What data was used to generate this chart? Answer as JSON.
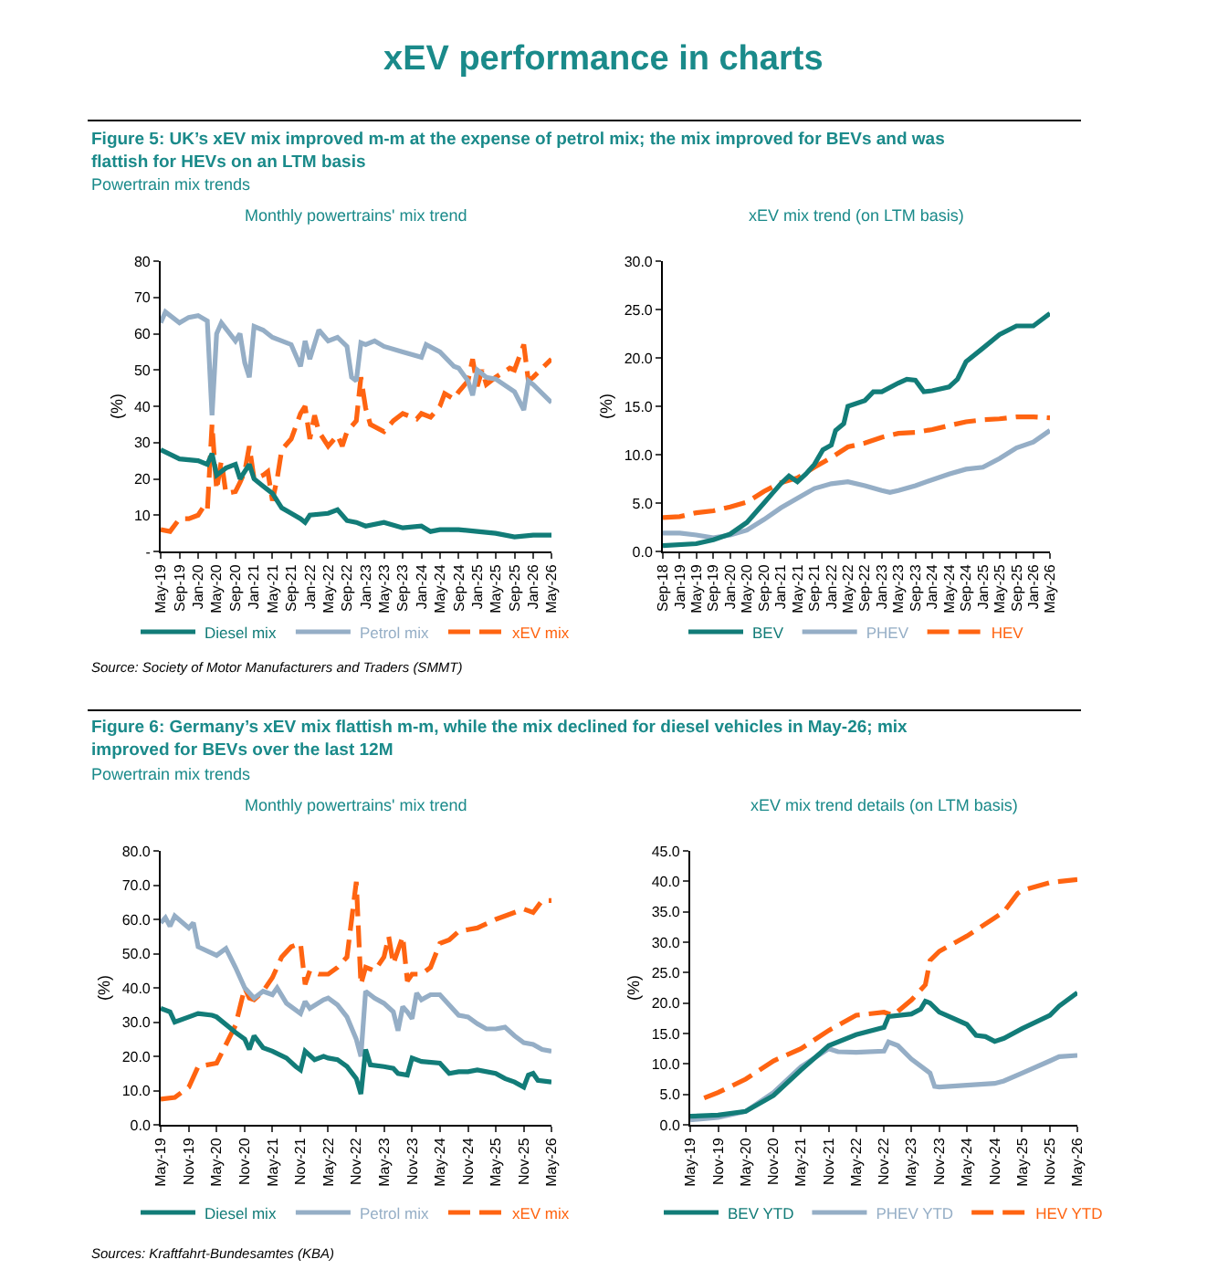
{
  "chart_data": [
    {
      "type": "line",
      "title": "Monthly powertrains' mix trend",
      "ylabel": "(%)",
      "legend": "bottom",
      "marker": "none",
      "annotations": [
        "xEV performance in charts",
        "Figure 5: UK’s xEV mix improved m-m at the expense of petrol mix; the mix improved for BEVs and was flattish for HEVs on an LTM basis",
        "Powertrain mix trends"
      ],
      "xlim": [
        "2019-05",
        "2026-05"
      ],
      "ylim": [
        0,
        80
      ],
      "xticks": [
        {
          "value": "2019-05",
          "label": "May-19"
        },
        {
          "value": "2019-09",
          "label": "Sep-19"
        },
        {
          "value": "2020-01",
          "label": "Jan-20"
        },
        {
          "value": "2020-05",
          "label": "May-20"
        },
        {
          "value": "2020-09",
          "label": "Sep-20"
        },
        {
          "value": "2021-01",
          "label": "Jan-21"
        },
        {
          "value": "2021-05",
          "label": "May-21"
        },
        {
          "value": "2021-09",
          "label": "Sep-21"
        },
        {
          "value": "2022-01",
          "label": "Jan-22"
        },
        {
          "value": "2022-05",
          "label": "May-22"
        },
        {
          "value": "2022-09",
          "label": "Sep-22"
        },
        {
          "value": "2023-01",
          "label": "Jan-23"
        },
        {
          "value": "2023-05",
          "label": "May-23"
        },
        {
          "value": "2023-09",
          "label": "Sep-23"
        },
        {
          "value": "2024-01",
          "label": "Jan-24"
        },
        {
          "value": "2024-05",
          "label": "May-24"
        },
        {
          "value": "2024-09",
          "label": "Sep-24"
        },
        {
          "value": "2025-01",
          "label": "Jan-25"
        },
        {
          "value": "2025-05",
          "label": "May-25"
        },
        {
          "value": "2025-09",
          "label": "Sep-25"
        },
        {
          "value": "2026-01",
          "label": "Jan-26"
        },
        {
          "value": "2026-05",
          "label": "May-26"
        }
      ],
      "yticks": [
        {
          "value": 0,
          "label": "-"
        },
        10,
        20,
        30,
        40,
        50,
        60,
        70,
        80
      ],
      "series": [
        {
          "name": "Diesel mix",
          "color": "#127c78",
          "line_style": "solid",
          "x": [
            "2019-05",
            "2019-09",
            "2020-01",
            "2020-03",
            "2020-04",
            "2020-05",
            "2020-07",
            "2020-09",
            "2020-10",
            "2020-12",
            "2021-01",
            "2021-03",
            "2021-05",
            "2021-07",
            "2021-09",
            "2021-11",
            "2021-12",
            "2022-01",
            "2022-05",
            "2022-07",
            "2022-09",
            "2022-11",
            "2023-01",
            "2023-05",
            "2023-09",
            "2024-01",
            "2024-03",
            "2024-05",
            "2024-09",
            "2025-01",
            "2025-05",
            "2025-09",
            "2026-01",
            "2026-05"
          ],
          "values": [
            28,
            25.5,
            25,
            24,
            27,
            21,
            23,
            24,
            20,
            24,
            20,
            18,
            16,
            12,
            10.5,
            9,
            8,
            10,
            10.5,
            11.5,
            8.5,
            8,
            7,
            8,
            6.5,
            7,
            5.5,
            6,
            6,
            5.5,
            5,
            4,
            4.5,
            4.5
          ]
        },
        {
          "name": "Petrol mix",
          "color": "#95aec6",
          "line_style": "solid",
          "x": [
            "2019-05",
            "2019-06",
            "2019-09",
            "2019-11",
            "2020-01",
            "2020-03",
            "2020-04",
            "2020-05",
            "2020-06",
            "2020-09",
            "2020-10",
            "2020-11",
            "2020-12",
            "2021-01",
            "2021-03",
            "2021-05",
            "2021-09",
            "2021-11",
            "2021-12",
            "2022-01",
            "2022-03",
            "2022-05",
            "2022-07",
            "2022-09",
            "2022-10",
            "2022-11",
            "2022-12",
            "2023-01",
            "2023-03",
            "2023-05",
            "2023-09",
            "2024-01",
            "2024-02",
            "2024-05",
            "2024-08",
            "2024-09",
            "2024-11",
            "2024-12",
            "2025-01",
            "2025-03",
            "2025-05",
            "2025-09",
            "2025-11",
            "2025-12",
            "2026-01",
            "2026-05"
          ],
          "values": [
            63,
            66,
            63,
            64.5,
            65,
            63.5,
            37.5,
            60,
            63,
            58,
            60,
            52,
            48,
            62,
            61,
            59,
            57,
            51,
            58,
            53,
            61,
            58,
            59,
            56.5,
            48,
            47,
            57.5,
            57,
            58,
            56.5,
            55,
            53.5,
            57,
            55,
            51,
            50.5,
            47,
            43,
            50,
            48,
            47.5,
            44,
            39,
            47,
            46,
            41
          ]
        },
        {
          "name": "xEV mix",
          "color": "#ff6411",
          "line_style": "dashed",
          "x": [
            "2019-05",
            "2019-07",
            "2019-09",
            "2019-11",
            "2020-01",
            "2020-02",
            "2020-03",
            "2020-04",
            "2020-05",
            "2020-06",
            "2020-07",
            "2020-09",
            "2020-10",
            "2020-11",
            "2020-12",
            "2021-01",
            "2021-03",
            "2021-04",
            "2021-05",
            "2021-06",
            "2021-07",
            "2021-09",
            "2021-11",
            "2021-12",
            "2022-01",
            "2022-02",
            "2022-03",
            "2022-05",
            "2022-07",
            "2022-08",
            "2022-09",
            "2022-11",
            "2022-12",
            "2023-01",
            "2023-02",
            "2023-05",
            "2023-07",
            "2023-09",
            "2023-12",
            "2024-01",
            "2024-03",
            "2024-05",
            "2024-06",
            "2024-08",
            "2024-09",
            "2024-11",
            "2024-12",
            "2025-01",
            "2025-02",
            "2025-03",
            "2025-05",
            "2025-08",
            "2025-09",
            "2025-11",
            "2025-12",
            "2026-01",
            "2026-05"
          ],
          "values": [
            6,
            5.5,
            9,
            9,
            10,
            12,
            11,
            35,
            17,
            25,
            16,
            16.5,
            19,
            22,
            29,
            20,
            21,
            22,
            14,
            20,
            28,
            31,
            38,
            40,
            31,
            37.5,
            33,
            29,
            32,
            29,
            33,
            36,
            48,
            39.5,
            35,
            33,
            36,
            38,
            36.5,
            38,
            37,
            40,
            43.5,
            42,
            44,
            47,
            53,
            45.5,
            50,
            46,
            48,
            50.5,
            50,
            57,
            47,
            48,
            53
          ]
        }
      ]
    },
    {
      "type": "line",
      "title": "xEV mix trend (on LTM basis)",
      "ylabel": "(%)",
      "legend": "bottom",
      "marker": "none",
      "annotations": [
        "Source: Society of Motor Manufacturers and Traders (SMMT)"
      ],
      "xlim": [
        "2018-09",
        "2026-05"
      ],
      "ylim": [
        0,
        30
      ],
      "xticks": [
        {
          "value": "2018-09",
          "label": "Sep-18"
        },
        {
          "value": "2019-01",
          "label": "Jan-19"
        },
        {
          "value": "2019-05",
          "label": "May-19"
        },
        {
          "value": "2019-09",
          "label": "Sep-19"
        },
        {
          "value": "2020-01",
          "label": "Jan-20"
        },
        {
          "value": "2020-05",
          "label": "May-20"
        },
        {
          "value": "2020-09",
          "label": "Sep-20"
        },
        {
          "value": "2021-01",
          "label": "Jan-21"
        },
        {
          "value": "2021-05",
          "label": "May-21"
        },
        {
          "value": "2021-09",
          "label": "Sep-21"
        },
        {
          "value": "2022-01",
          "label": "Jan-22"
        },
        {
          "value": "2022-05",
          "label": "May-22"
        },
        {
          "value": "2022-09",
          "label": "Sep-22"
        },
        {
          "value": "2023-01",
          "label": "Jan-23"
        },
        {
          "value": "2023-05",
          "label": "May-23"
        },
        {
          "value": "2023-09",
          "label": "Sep-23"
        },
        {
          "value": "2024-01",
          "label": "Jan-24"
        },
        {
          "value": "2024-05",
          "label": "May-24"
        },
        {
          "value": "2024-09",
          "label": "Sep-24"
        },
        {
          "value": "2025-01",
          "label": "Jan-25"
        },
        {
          "value": "2025-05",
          "label": "May-25"
        },
        {
          "value": "2025-09",
          "label": "Sep-25"
        },
        {
          "value": "2026-01",
          "label": "Jan-26"
        },
        {
          "value": "2026-05",
          "label": "May-26"
        }
      ],
      "yticks": [
        {
          "value": 0,
          "label": "0.0"
        },
        {
          "value": 5,
          "label": "5.0"
        },
        {
          "value": 10,
          "label": "10.0"
        },
        {
          "value": 15,
          "label": "15.0"
        },
        {
          "value": 20,
          "label": "20.0"
        },
        {
          "value": 25,
          "label": "25.0"
        },
        {
          "value": 30,
          "label": "30.0"
        }
      ],
      "series": [
        {
          "name": "BEV",
          "color": "#127c78",
          "line_style": "solid",
          "x": [
            "2018-09",
            "2019-05",
            "2019-09",
            "2020-01",
            "2020-05",
            "2020-09",
            "2020-11",
            "2021-01",
            "2021-03",
            "2021-05",
            "2021-07",
            "2021-09",
            "2021-11",
            "2022-01",
            "2022-02",
            "2022-04",
            "2022-05",
            "2022-09",
            "2022-11",
            "2023-01",
            "2023-05",
            "2023-07",
            "2023-09",
            "2023-11",
            "2024-01",
            "2024-05",
            "2024-07",
            "2024-09",
            "2025-01",
            "2025-05",
            "2025-09",
            "2026-01",
            "2026-05"
          ],
          "values": [
            0.6,
            0.8,
            1.2,
            1.8,
            3,
            5,
            6,
            7,
            7.8,
            7.2,
            8,
            9,
            10.5,
            11,
            12.5,
            13.2,
            15,
            15.6,
            16.5,
            16.5,
            17.4,
            17.8,
            17.7,
            16.5,
            16.6,
            17,
            17.8,
            19.6,
            21,
            22.4,
            23.3,
            23.3,
            24.6
          ]
        },
        {
          "name": "PHEV",
          "color": "#95aec6",
          "line_style": "solid",
          "x": [
            "2018-09",
            "2019-01",
            "2019-05",
            "2019-09",
            "2020-01",
            "2020-05",
            "2020-09",
            "2021-01",
            "2021-05",
            "2021-09",
            "2022-01",
            "2022-05",
            "2022-09",
            "2023-01",
            "2023-03",
            "2023-05",
            "2023-09",
            "2024-01",
            "2024-05",
            "2024-09",
            "2025-01",
            "2025-05",
            "2025-09",
            "2026-01",
            "2026-05"
          ],
          "values": [
            1.9,
            1.9,
            1.7,
            1.4,
            1.7,
            2.2,
            3.3,
            4.5,
            5.5,
            6.5,
            7.0,
            7.2,
            6.8,
            6.3,
            6.1,
            6.3,
            6.8,
            7.4,
            8.0,
            8.5,
            8.7,
            9.6,
            10.7,
            11.3,
            12.5
          ]
        },
        {
          "name": "HEV",
          "color": "#ff6411",
          "line_style": "dashed",
          "x": [
            "2018-09",
            "2019-01",
            "2019-05",
            "2019-09",
            "2020-01",
            "2020-05",
            "2020-09",
            "2021-01",
            "2021-05",
            "2021-09",
            "2022-01",
            "2022-05",
            "2022-09",
            "2023-01",
            "2023-05",
            "2023-09",
            "2024-01",
            "2024-05",
            "2024-09",
            "2025-01",
            "2025-05",
            "2025-09",
            "2026-01",
            "2026-05"
          ],
          "values": [
            3.5,
            3.6,
            4.0,
            4.2,
            4.6,
            5.1,
            6.2,
            7.1,
            7.6,
            8.7,
            9.7,
            10.8,
            11.2,
            11.8,
            12.2,
            12.3,
            12.6,
            13.0,
            13.4,
            13.6,
            13.7,
            13.9,
            13.9,
            13.8
          ]
        }
      ]
    },
    {
      "type": "line",
      "title": "Monthly powertrains' mix trend",
      "ylabel": "(%)",
      "legend": "bottom",
      "marker": "none",
      "annotations": [
        "Figure 6: Germany’s xEV mix flattish m-m, while the mix declined for diesel vehicles in May-26; mix improved for BEVs over the last 12M",
        "Powertrain mix trends"
      ],
      "xlim": [
        "2019-05",
        "2026-05"
      ],
      "ylim": [
        0,
        80
      ],
      "xticks": [
        {
          "value": "2019-05",
          "label": "May-19"
        },
        {
          "value": "2019-11",
          "label": "Nov-19"
        },
        {
          "value": "2020-05",
          "label": "May-20"
        },
        {
          "value": "2020-11",
          "label": "Nov-20"
        },
        {
          "value": "2021-05",
          "label": "May-21"
        },
        {
          "value": "2021-11",
          "label": "Nov-21"
        },
        {
          "value": "2022-05",
          "label": "May-22"
        },
        {
          "value": "2022-11",
          "label": "Nov-22"
        },
        {
          "value": "2023-05",
          "label": "May-23"
        },
        {
          "value": "2023-11",
          "label": "Nov-23"
        },
        {
          "value": "2024-05",
          "label": "May-24"
        },
        {
          "value": "2024-11",
          "label": "Nov-24"
        },
        {
          "value": "2025-05",
          "label": "May-25"
        },
        {
          "value": "2025-11",
          "label": "Nov-25"
        },
        {
          "value": "2026-05",
          "label": "May-26"
        }
      ],
      "yticks": [
        {
          "value": 0,
          "label": "0.0"
        },
        {
          "value": 10,
          "label": "10.0"
        },
        {
          "value": 20,
          "label": "20.0"
        },
        {
          "value": 30,
          "label": "30.0"
        },
        {
          "value": 40,
          "label": "40.0"
        },
        {
          "value": 50,
          "label": "50.0"
        },
        {
          "value": 60,
          "label": "60.0"
        },
        {
          "value": 70,
          "label": "70.0"
        },
        {
          "value": 80,
          "label": "80.0"
        }
      ],
      "series": [
        {
          "name": "Diesel mix",
          "color": "#127c78",
          "line_style": "solid",
          "x": [
            "2019-05",
            "2019-07",
            "2019-08",
            "2019-11",
            "2020-01",
            "2020-04",
            "2020-05",
            "2020-09",
            "2020-11",
            "2020-12",
            "2021-01",
            "2021-03",
            "2021-05",
            "2021-08",
            "2021-10",
            "2021-11",
            "2021-12",
            "2022-02",
            "2022-04",
            "2022-05",
            "2022-07",
            "2022-09",
            "2022-11",
            "2022-12",
            "2023-01",
            "2023-02",
            "2023-05",
            "2023-07",
            "2023-08",
            "2023-10",
            "2023-11",
            "2024-01",
            "2024-05",
            "2024-07",
            "2024-09",
            "2024-11",
            "2025-01",
            "2025-05",
            "2025-07",
            "2025-09",
            "2025-11",
            "2025-12",
            "2026-01",
            "2026-02",
            "2026-05"
          ],
          "values": [
            34,
            33,
            30,
            31.5,
            32.5,
            32,
            31.5,
            27,
            25,
            22,
            26,
            22.5,
            21.5,
            19.5,
            17,
            16,
            21.5,
            19,
            20,
            19.5,
            19,
            17,
            13.5,
            9,
            22,
            17.5,
            17,
            16.5,
            15,
            14.5,
            19.5,
            18.5,
            18,
            15,
            15.5,
            15.5,
            16,
            15,
            13.5,
            12.5,
            11,
            14.5,
            15,
            13,
            12.5
          ]
        },
        {
          "name": "Petrol mix",
          "color": "#95aec6",
          "line_style": "solid",
          "x": [
            "2019-05",
            "2019-06",
            "2019-07",
            "2019-08",
            "2019-11",
            "2019-12",
            "2020-01",
            "2020-05",
            "2020-07",
            "2020-09",
            "2020-11",
            "2021-01",
            "2021-03",
            "2021-05",
            "2021-06",
            "2021-08",
            "2021-11",
            "2021-12",
            "2022-01",
            "2022-04",
            "2022-05",
            "2022-07",
            "2022-09",
            "2022-11",
            "2022-12",
            "2023-01",
            "2023-03",
            "2023-05",
            "2023-07",
            "2023-08",
            "2023-09",
            "2023-10",
            "2023-11",
            "2023-12",
            "2024-01",
            "2024-03",
            "2024-05",
            "2024-07",
            "2024-09",
            "2024-11",
            "2025-01",
            "2025-03",
            "2025-05",
            "2025-07",
            "2025-09",
            "2025-11",
            "2026-01",
            "2026-03",
            "2026-05"
          ],
          "values": [
            59,
            60.5,
            58,
            61,
            57.5,
            59,
            52,
            49.5,
            51.5,
            46,
            40,
            37,
            39,
            38,
            40,
            35.5,
            32.5,
            36,
            34,
            36.5,
            37,
            35,
            31.5,
            25,
            20,
            39,
            37,
            35.5,
            33,
            27.5,
            34.5,
            33,
            31,
            38.5,
            36.5,
            38,
            38,
            35,
            32,
            31.5,
            29.5,
            28,
            28,
            28.5,
            26,
            24,
            23.5,
            22,
            21.5
          ]
        },
        {
          "name": "xEV mix",
          "color": "#ff6411",
          "line_style": "dashed",
          "x": [
            "2019-05",
            "2019-08",
            "2019-11",
            "2020-01",
            "2020-05",
            "2020-09",
            "2020-11",
            "2020-12",
            "2021-01",
            "2021-03",
            "2021-05",
            "2021-07",
            "2021-09",
            "2021-11",
            "2021-12",
            "2022-01",
            "2022-03",
            "2022-05",
            "2022-07",
            "2022-09",
            "2022-11",
            "2022-12",
            "2023-01",
            "2023-03",
            "2023-05",
            "2023-06",
            "2023-07",
            "2023-09",
            "2023-10",
            "2023-11",
            "2024-01",
            "2024-03",
            "2024-05",
            "2024-07",
            "2024-09",
            "2024-11",
            "2025-01",
            "2025-05",
            "2025-11",
            "2026-01",
            "2026-03",
            "2026-05"
          ],
          "values": [
            7.5,
            8,
            11,
            17,
            18,
            29,
            40,
            37,
            36.5,
            39,
            43,
            49,
            52,
            53,
            41,
            45,
            44,
            44,
            46,
            49,
            71,
            41,
            46,
            45,
            49,
            55,
            47,
            55,
            42,
            44,
            44,
            46,
            53,
            54,
            56.5,
            57,
            57.5,
            60,
            63,
            62,
            65.5,
            65.5
          ]
        }
      ]
    },
    {
      "type": "line",
      "title": "xEV mix trend details (on LTM basis)",
      "ylabel": "(%)",
      "legend": "bottom",
      "marker": "none",
      "annotations": [
        "Sources: Kraftfahrt-Bundesamtes (KBA)"
      ],
      "xlim": [
        "2019-05",
        "2026-05"
      ],
      "ylim": [
        0,
        45
      ],
      "xticks": [
        {
          "value": "2019-05",
          "label": "May-19"
        },
        {
          "value": "2019-11",
          "label": "Nov-19"
        },
        {
          "value": "2020-05",
          "label": "May-20"
        },
        {
          "value": "2020-11",
          "label": "Nov-20"
        },
        {
          "value": "2021-05",
          "label": "May-21"
        },
        {
          "value": "2021-11",
          "label": "Nov-21"
        },
        {
          "value": "2022-05",
          "label": "May-22"
        },
        {
          "value": "2022-11",
          "label": "Nov-22"
        },
        {
          "value": "2023-05",
          "label": "May-23"
        },
        {
          "value": "2023-11",
          "label": "Nov-23"
        },
        {
          "value": "2024-05",
          "label": "May-24"
        },
        {
          "value": "2024-11",
          "label": "Nov-24"
        },
        {
          "value": "2025-05",
          "label": "May-25"
        },
        {
          "value": "2025-11",
          "label": "Nov-25"
        },
        {
          "value": "2026-05",
          "label": "May-26"
        }
      ],
      "yticks": [
        {
          "value": 0,
          "label": "0.0"
        },
        {
          "value": 5,
          "label": "5.0"
        },
        {
          "value": 10,
          "label": "10.0"
        },
        {
          "value": 15,
          "label": "15.0"
        },
        {
          "value": 20,
          "label": "20.0"
        },
        {
          "value": 25,
          "label": "25.0"
        },
        {
          "value": 30,
          "label": "30.0"
        },
        {
          "value": 35,
          "label": "35.0"
        },
        {
          "value": 40,
          "label": "40.0"
        },
        {
          "value": 45,
          "label": "45.0"
        }
      ],
      "series": [
        {
          "name": "BEV YTD",
          "color": "#127c78",
          "line_style": "solid",
          "x": [
            "2019-05",
            "2019-11",
            "2020-05",
            "2020-11",
            "2021-05",
            "2021-11",
            "2022-05",
            "2022-11",
            "2022-12",
            "2023-05",
            "2023-07",
            "2023-08",
            "2023-09",
            "2023-11",
            "2024-05",
            "2024-07",
            "2024-09",
            "2024-11",
            "2025-01",
            "2025-05",
            "2025-11",
            "2026-01",
            "2026-05"
          ],
          "values": [
            1.4,
            1.6,
            2.2,
            4.8,
            9,
            13,
            14.8,
            16,
            17.8,
            18.2,
            19,
            20.3,
            20,
            18.5,
            16.5,
            14.7,
            14.5,
            13.7,
            14.2,
            15.8,
            18,
            19.5,
            21.7
          ]
        },
        {
          "name": "PHEV YTD",
          "color": "#95aec6",
          "line_style": "solid",
          "x": [
            "2019-05",
            "2019-11",
            "2020-05",
            "2020-11",
            "2021-05",
            "2021-11",
            "2022-01",
            "2022-05",
            "2022-11",
            "2022-12",
            "2023-02",
            "2023-05",
            "2023-09",
            "2023-10",
            "2023-11",
            "2024-05",
            "2024-11",
            "2025-01",
            "2025-05",
            "2025-11",
            "2026-01",
            "2026-05"
          ],
          "values": [
            0.8,
            1.2,
            2.2,
            5.3,
            9.5,
            12.5,
            12,
            11.9,
            12.1,
            13.6,
            13,
            10.8,
            8.5,
            6.3,
            6.2,
            6.5,
            6.8,
            7.2,
            8.5,
            10.5,
            11.2,
            11.4
          ]
        },
        {
          "name": "HEV YTD",
          "color": "#ff6411",
          "line_style": "dashed",
          "x": [
            "2019-08",
            "2019-11",
            "2020-05",
            "2020-11",
            "2021-05",
            "2021-11",
            "2022-05",
            "2022-11",
            "2023-01",
            "2023-05",
            "2023-08",
            "2023-09",
            "2023-11",
            "2024-05",
            "2024-11",
            "2025-01",
            "2025-04",
            "2025-05",
            "2025-11",
            "2026-05"
          ],
          "values": [
            4.4,
            5.3,
            7.5,
            10.5,
            12.5,
            15.5,
            18.0,
            18.5,
            18,
            20.5,
            23,
            27,
            28.5,
            31,
            34,
            35,
            38,
            38.5,
            39.8,
            40.3
          ]
        }
      ]
    }
  ]
}
